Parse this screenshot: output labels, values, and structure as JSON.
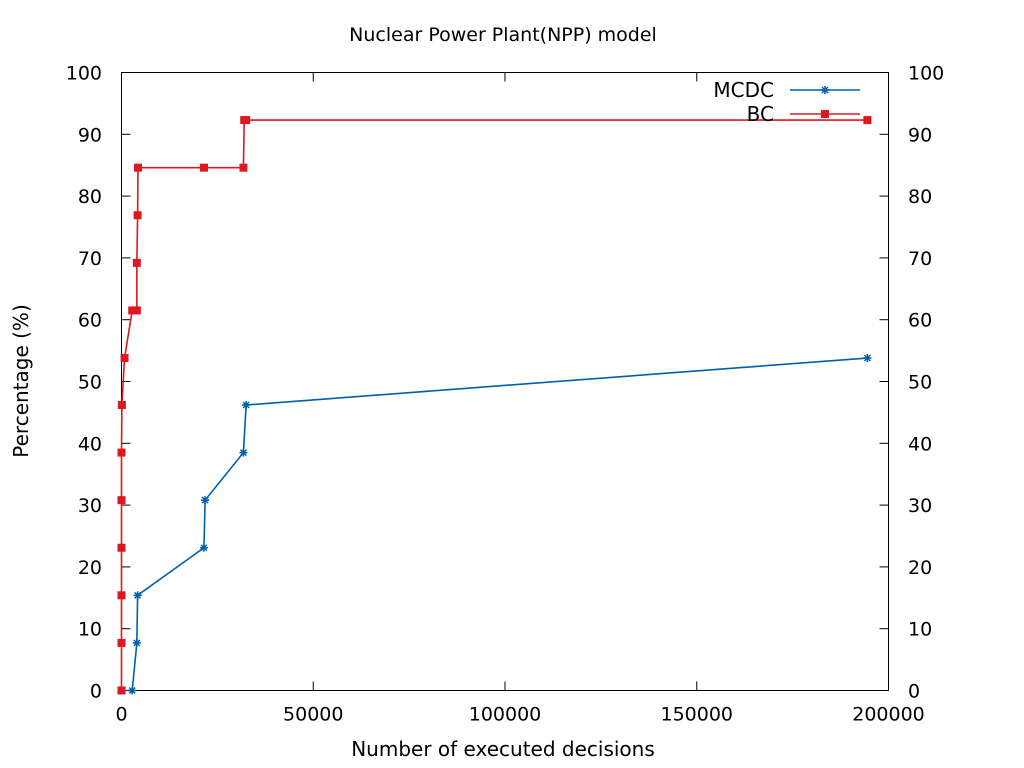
{
  "chart_data": {
    "type": "line",
    "title": "Nuclear Power Plant(NPP) model",
    "xlabel": "Number of executed decisions",
    "ylabel": "Percentage (%)",
    "xlim": [
      0,
      200000
    ],
    "ylim": [
      0,
      100
    ],
    "x_ticks": [
      0,
      50000,
      100000,
      150000,
      200000
    ],
    "y_ticks": [
      0,
      10,
      20,
      30,
      40,
      50,
      60,
      70,
      80,
      90,
      100
    ],
    "y2_ticks": [
      0,
      10,
      20,
      30,
      40,
      50,
      60,
      70,
      80,
      90,
      100
    ],
    "grid": false,
    "legend_position": "top-right",
    "series": [
      {
        "name": "MCDC",
        "color": "#0060ad",
        "marker": "star",
        "points": [
          [
            0,
            0
          ],
          [
            2800,
            0
          ],
          [
            4000,
            7.7
          ],
          [
            4200,
            15.4
          ],
          [
            21500,
            23.1
          ],
          [
            21800,
            30.8
          ],
          [
            31800,
            38.5
          ],
          [
            32500,
            46.2
          ],
          [
            194500,
            53.8
          ]
        ]
      },
      {
        "name": "BC",
        "color": "#dd181f",
        "marker": "square",
        "points": [
          [
            0,
            0
          ],
          [
            0,
            7.7
          ],
          [
            0,
            15.4
          ],
          [
            0,
            23.1
          ],
          [
            0,
            30.8
          ],
          [
            0,
            38.5
          ],
          [
            100,
            46.2
          ],
          [
            800,
            53.8
          ],
          [
            2800,
            61.5
          ],
          [
            4000,
            61.5
          ],
          [
            4000,
            69.2
          ],
          [
            4200,
            76.9
          ],
          [
            4300,
            84.6
          ],
          [
            21500,
            84.6
          ],
          [
            31800,
            84.6
          ],
          [
            32000,
            92.3
          ],
          [
            32500,
            92.3
          ],
          [
            194500,
            92.3
          ]
        ]
      }
    ]
  }
}
